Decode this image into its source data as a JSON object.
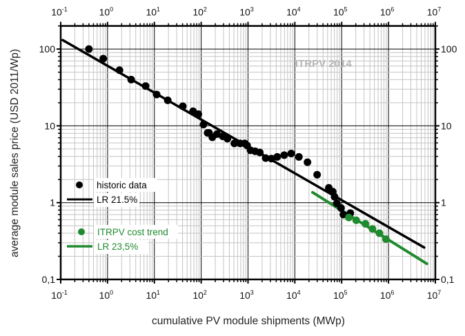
{
  "chart_data": {
    "type": "scatter",
    "xlabel": "cumulative PV module shipments (MWp)",
    "ylabel": "average module sales price (USD 2011/Wp)",
    "xscale": "log",
    "yscale": "log",
    "xlim": [
      0.1,
      10000000
    ],
    "ylim": [
      0.1,
      200
    ],
    "grid": true,
    "legend_placement": "bottom-left",
    "x_tick_base": "10",
    "x_tick_exponents": [
      "-1",
      "0",
      "1",
      "2",
      "3",
      "4",
      "5",
      "6",
      "7"
    ],
    "y_tick_values": [
      100,
      10,
      1,
      0.1
    ],
    "y_tick_labels": [
      "100",
      "10",
      "1",
      "0,1"
    ],
    "watermark": "ITRPV 2014",
    "colors": {
      "historic": "#000000",
      "itrpv": "#1f8a2e",
      "grid_minor": "#c4c4c4",
      "grid_major": "#000000",
      "watermark": "#b4b4b4"
    },
    "series": [
      {
        "name": "historic data",
        "kind": "points",
        "color": "#000000",
        "x": [
          0.4,
          0.81,
          1.8,
          3.2,
          6.5,
          11.2,
          19.3,
          40.5,
          67,
          87,
          112,
          137,
          147,
          173,
          217,
          289,
          363,
          510,
          680,
          850,
          955,
          1130,
          1420,
          1790,
          2380,
          3160,
          4210,
          5930,
          8350,
          12200,
          18600,
          29900,
          53100,
          64500,
          70500,
          79000,
          97000,
          109000,
          153000
        ],
        "y": [
          100,
          75,
          53,
          40,
          33,
          25.6,
          21.5,
          18,
          15.5,
          14.2,
          10.4,
          8.1,
          8.1,
          7.1,
          7.8,
          7.3,
          6.8,
          5.9,
          5.9,
          5.9,
          5.55,
          4.8,
          4.67,
          4.5,
          3.8,
          3.75,
          3.94,
          4.15,
          4.36,
          3.94,
          3.36,
          2.31,
          1.56,
          1.39,
          1.19,
          0.98,
          0.85,
          0.7,
          0.73
        ]
      },
      {
        "name": "LR 21.5%",
        "kind": "line",
        "color": "#000000",
        "x": [
          0.11,
          5800000
        ],
        "y": [
          131,
          0.26
        ]
      },
      {
        "name": "ITRPV cost trend",
        "kind": "points",
        "color": "#1f8a2e",
        "x": [
          142000,
          204000,
          322000,
          454000,
          640000,
          879000
        ],
        "y": [
          0.64,
          0.59,
          0.53,
          0.455,
          0.4,
          0.335
        ]
      },
      {
        "name": "LR 23,5%",
        "kind": "line",
        "color": "#1f8a2e",
        "x": [
          23900,
          6600000
        ],
        "y": [
          1.36,
          0.16
        ]
      }
    ]
  }
}
